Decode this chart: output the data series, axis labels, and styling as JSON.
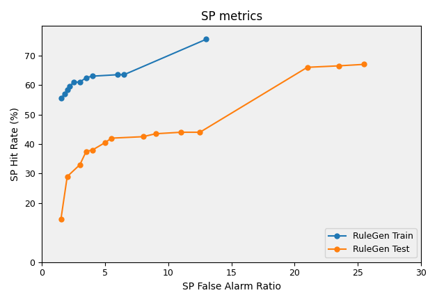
{
  "title": "SP metrics",
  "xlabel": "SP False Alarm Ratio",
  "ylabel": "SP Hit Rate (%)",
  "xlim": [
    0,
    30
  ],
  "ylim": [
    0,
    80
  ],
  "train": {
    "x": [
      1.5,
      1.8,
      2.0,
      2.2,
      2.5,
      3.0,
      3.5,
      4.0,
      6.0,
      6.5,
      13.0
    ],
    "y": [
      55.5,
      57.0,
      58.5,
      59.5,
      61.0,
      61.0,
      62.5,
      63.0,
      63.5,
      63.5,
      75.5
    ],
    "color": "#1f77b4",
    "label": "RuleGen Train"
  },
  "test": {
    "x": [
      1.5,
      2.0,
      3.0,
      3.5,
      4.0,
      5.0,
      5.5,
      8.0,
      9.0,
      11.0,
      12.5,
      21.0,
      23.5,
      25.5
    ],
    "y": [
      14.5,
      29.0,
      33.0,
      37.5,
      38.0,
      40.5,
      42.0,
      42.5,
      43.5,
      44.0,
      44.0,
      66.0,
      66.5,
      67.0
    ],
    "color": "#ff7f0e",
    "label": "RuleGen Test"
  },
  "xticks": [
    0,
    5,
    10,
    15,
    20,
    25,
    30
  ],
  "yticks": [
    0,
    20,
    30,
    40,
    50,
    60,
    70
  ],
  "legend_loc": "lower right",
  "title_fontsize": 12,
  "axis_label_fontsize": 10,
  "tick_fontsize": 9,
  "marker": "o",
  "markersize": 5,
  "linewidth": 1.5,
  "bg_color": "#f0f0f0",
  "figure_bg": "#ffffff"
}
